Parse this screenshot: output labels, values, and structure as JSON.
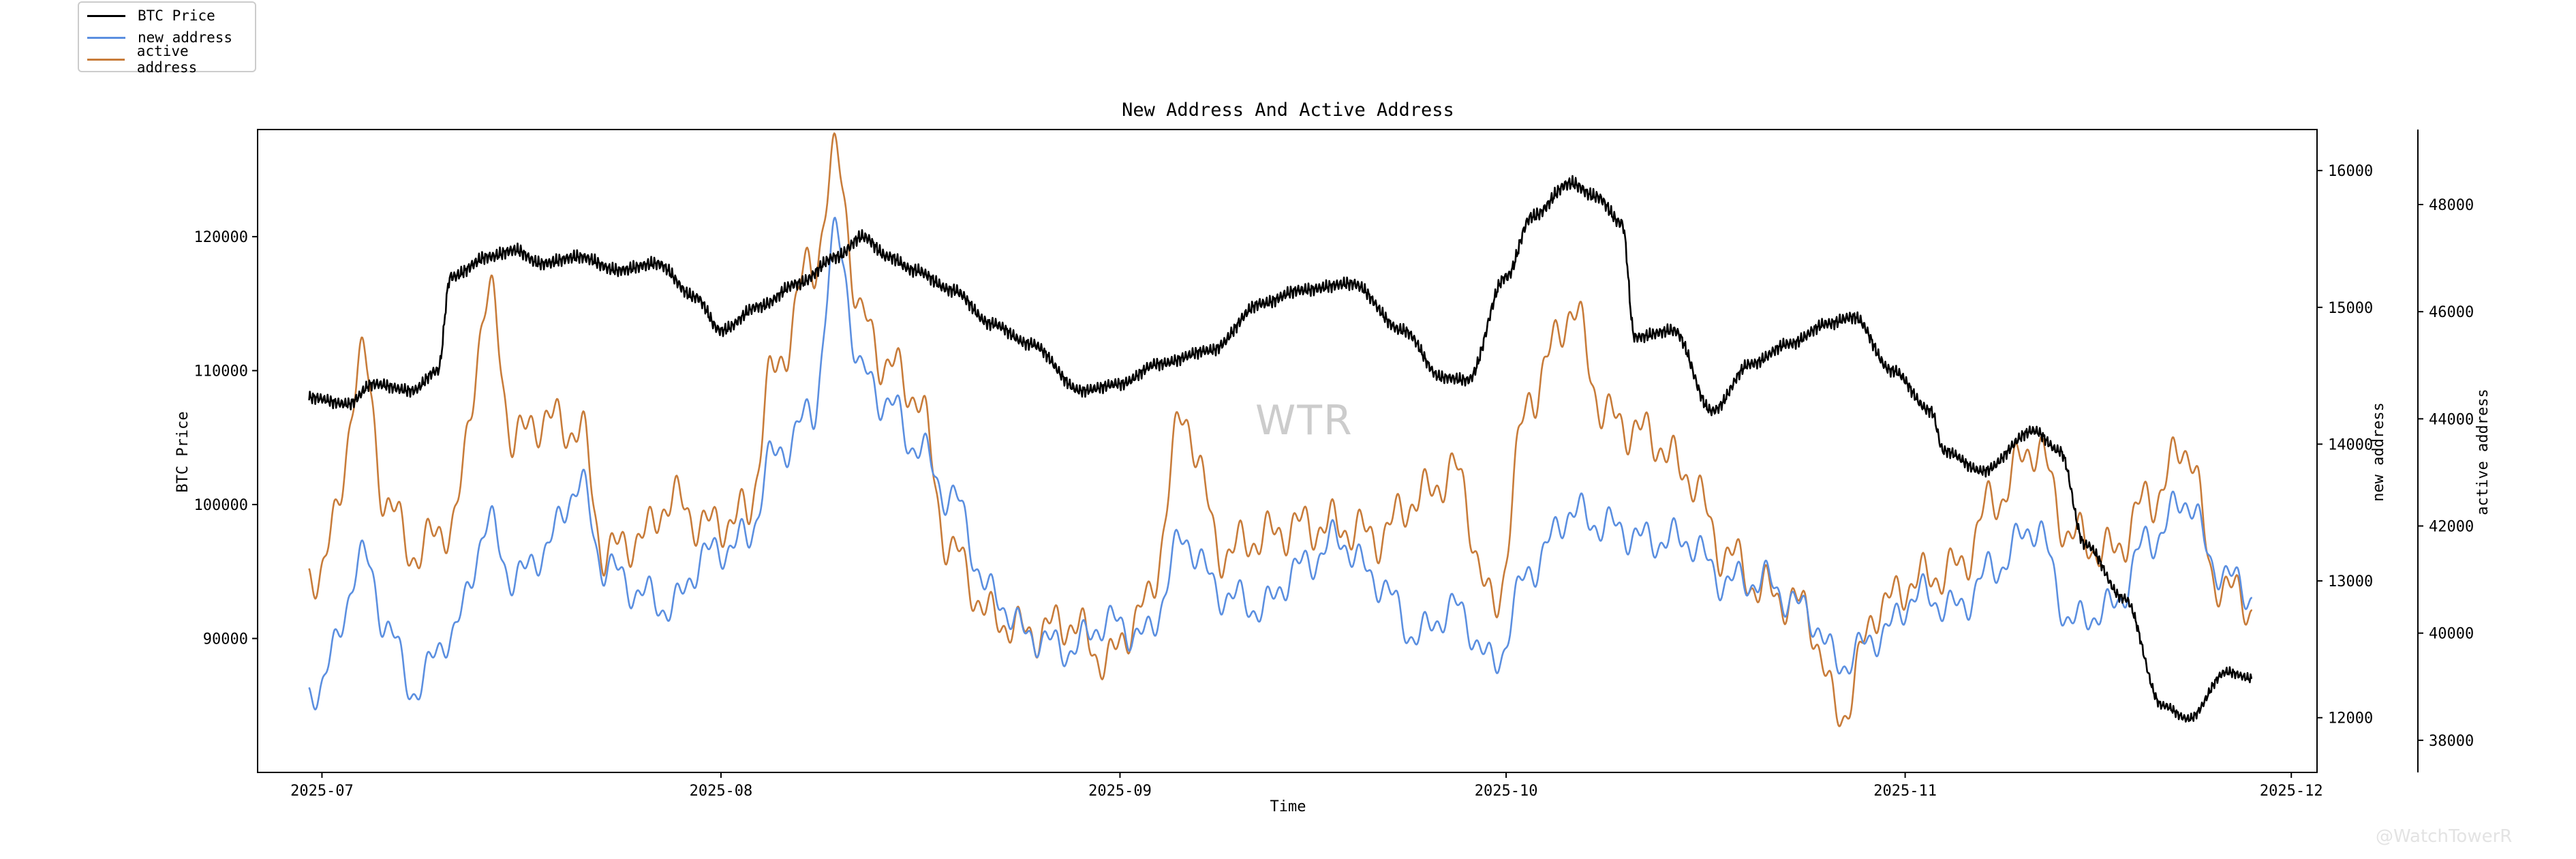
{
  "chart_data": {
    "type": "line",
    "title": "New Address And Active Address",
    "xlabel": "Time",
    "ylabel_left": "BTC Price",
    "ylabel_right1": "new address",
    "ylabel_right2": "active address",
    "x_range": [
      "2025-06-26",
      "2025-12-03"
    ],
    "x_ticks": [
      "2025-07",
      "2025-08",
      "2025-09",
      "2025-10",
      "2025-11",
      "2025-12"
    ],
    "y_left_range": [
      80000,
      128000
    ],
    "y_left_ticks": [
      "90000",
      "100000",
      "110000",
      "120000"
    ],
    "y_right1_range": [
      11600,
      16300
    ],
    "y_right1_ticks": [
      "12000",
      "13000",
      "14000",
      "15000",
      "16000"
    ],
    "y_right2_range": [
      37400,
      49400
    ],
    "y_right2_ticks": [
      "38000",
      "40000",
      "42000",
      "44000",
      "46000",
      "48000"
    ],
    "grid": false,
    "legend_position": "top-left",
    "series": [
      {
        "name": "BTC Price",
        "axis": "left",
        "color": "#000000",
        "x": [
          "2025-06-30",
          "2025-07-03",
          "2025-07-05",
          "2025-07-08",
          "2025-07-10",
          "2025-07-11",
          "2025-07-14",
          "2025-07-16",
          "2025-07-18",
          "2025-07-21",
          "2025-07-24",
          "2025-07-27",
          "2025-07-30",
          "2025-08-01",
          "2025-08-04",
          "2025-08-07",
          "2025-08-10",
          "2025-08-12",
          "2025-08-14",
          "2025-08-16",
          "2025-08-19",
          "2025-08-22",
          "2025-08-25",
          "2025-08-29",
          "2025-09-01",
          "2025-09-04",
          "2025-09-08",
          "2025-09-12",
          "2025-09-15",
          "2025-09-19",
          "2025-09-23",
          "2025-09-26",
          "2025-09-28",
          "2025-10-01",
          "2025-10-03",
          "2025-10-06",
          "2025-10-08",
          "2025-10-10",
          "2025-10-11",
          "2025-10-14",
          "2025-10-17",
          "2025-10-20",
          "2025-10-23",
          "2025-10-26",
          "2025-10-28",
          "2025-10-31",
          "2025-11-03",
          "2025-11-04",
          "2025-11-07",
          "2025-11-11",
          "2025-11-13",
          "2025-11-15",
          "2025-11-18",
          "2025-11-21",
          "2025-11-23",
          "2025-11-26",
          "2025-11-28"
        ],
        "values": [
          108000,
          107500,
          109000,
          108500,
          110000,
          117000,
          118500,
          119000,
          118000,
          118500,
          117500,
          118000,
          115500,
          113000,
          114800,
          116500,
          118500,
          120000,
          118500,
          117500,
          116000,
          113500,
          112000,
          108500,
          109000,
          110500,
          111500,
          115000,
          116000,
          116500,
          113000,
          109500,
          109300,
          117000,
          121500,
          124000,
          123000,
          121000,
          112500,
          113000,
          107000,
          110500,
          112000,
          113500,
          114000,
          110000,
          107000,
          104000,
          102500,
          105500,
          104000,
          97000,
          93000,
          85000,
          84000,
          87500,
          87000
        ]
      },
      {
        "name": "new address",
        "axis": "right1",
        "color": "#5b8fe0",
        "x": [
          "2025-06-30",
          "2025-07-02",
          "2025-07-04",
          "2025-07-06",
          "2025-07-08",
          "2025-07-11",
          "2025-07-14",
          "2025-07-16",
          "2025-07-18",
          "2025-07-21",
          "2025-07-23",
          "2025-07-26",
          "2025-07-28",
          "2025-07-31",
          "2025-08-03",
          "2025-08-05",
          "2025-08-08",
          "2025-08-10",
          "2025-08-12",
          "2025-08-14",
          "2025-08-16",
          "2025-08-19",
          "2025-08-22",
          "2025-08-25",
          "2025-08-28",
          "2025-08-31",
          "2025-09-03",
          "2025-09-06",
          "2025-09-09",
          "2025-09-12",
          "2025-09-15",
          "2025-09-18",
          "2025-09-21",
          "2025-09-24",
          "2025-09-27",
          "2025-09-30",
          "2025-10-03",
          "2025-10-06",
          "2025-10-09",
          "2025-10-12",
          "2025-10-15",
          "2025-10-18",
          "2025-10-21",
          "2025-10-24",
          "2025-10-27",
          "2025-10-30",
          "2025-11-02",
          "2025-11-05",
          "2025-11-08",
          "2025-11-11",
          "2025-11-14",
          "2025-11-17",
          "2025-11-20",
          "2025-11-23",
          "2025-11-25",
          "2025-11-28"
        ],
        "values": [
          12100,
          12500,
          13200,
          12700,
          12200,
          12600,
          13400,
          13000,
          13200,
          13700,
          13100,
          12900,
          12800,
          13200,
          13300,
          13900,
          14200,
          15500,
          14500,
          14300,
          14000,
          13600,
          12900,
          12600,
          12500,
          12700,
          12600,
          13300,
          12900,
          12800,
          13100,
          13300,
          13000,
          12600,
          12800,
          12400,
          13100,
          13500,
          13400,
          13300,
          13300,
          13000,
          13000,
          12800,
          12400,
          12600,
          12900,
          12800,
          13100,
          13400,
          12700,
          12800,
          13300,
          13600,
          13100,
          12900
        ]
      },
      {
        "name": "active address",
        "axis": "right2",
        "color": "#c87c3a",
        "x": [
          "2025-06-30",
          "2025-07-02",
          "2025-07-04",
          "2025-07-06",
          "2025-07-08",
          "2025-07-11",
          "2025-07-14",
          "2025-07-16",
          "2025-07-18",
          "2025-07-21",
          "2025-07-23",
          "2025-07-26",
          "2025-07-28",
          "2025-07-31",
          "2025-08-03",
          "2025-08-05",
          "2025-08-08",
          "2025-08-10",
          "2025-08-12",
          "2025-08-14",
          "2025-08-16",
          "2025-08-19",
          "2025-08-22",
          "2025-08-25",
          "2025-08-28",
          "2025-08-31",
          "2025-09-03",
          "2025-09-06",
          "2025-09-09",
          "2025-09-12",
          "2025-09-15",
          "2025-09-18",
          "2025-09-21",
          "2025-09-24",
          "2025-09-27",
          "2025-09-30",
          "2025-10-03",
          "2025-10-06",
          "2025-10-09",
          "2025-10-12",
          "2025-10-15",
          "2025-10-18",
          "2025-10-21",
          "2025-10-24",
          "2025-10-27",
          "2025-10-30",
          "2025-11-02",
          "2025-11-05",
          "2025-11-08",
          "2025-11-11",
          "2025-11-14",
          "2025-11-17",
          "2025-11-20",
          "2025-11-23",
          "2025-11-25",
          "2025-11-28"
        ],
        "values": [
          40800,
          42000,
          45200,
          42500,
          41500,
          42000,
          46200,
          43600,
          44000,
          43800,
          41500,
          41800,
          42500,
          42000,
          42200,
          44800,
          46800,
          48800,
          45800,
          45000,
          44500,
          41500,
          40300,
          40000,
          40200,
          39500,
          40500,
          44000,
          41500,
          41800,
          42000,
          42000,
          41800,
          42500,
          43000,
          40500,
          44500,
          46000,
          44000,
          43700,
          43000,
          41500,
          40800,
          40500,
          38500,
          40500,
          41000,
          41200,
          42500,
          43500,
          41800,
          41500,
          42500,
          43500,
          41000,
          40500
        ]
      }
    ],
    "annotation": "WTR"
  },
  "watermark": "@WatchTowerR"
}
